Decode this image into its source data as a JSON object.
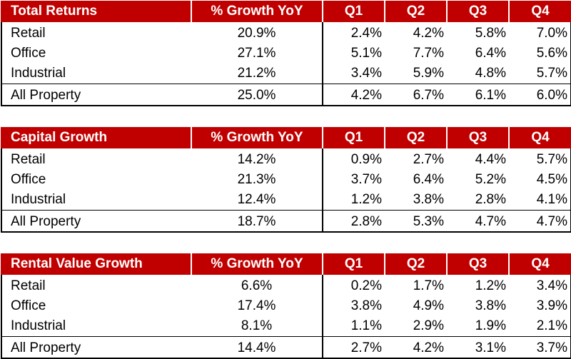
{
  "columns": {
    "yoy": "% Growth YoY",
    "q1": "Q1",
    "q2": "Q2",
    "q3": "Q3",
    "q4": "Q4"
  },
  "tables": [
    {
      "title": "Total Returns",
      "rows": [
        {
          "label": "Retail",
          "yoy": "20.9%",
          "q1": "2.4%",
          "q2": "4.2%",
          "q3": "5.8%",
          "q4": "7.0%"
        },
        {
          "label": "Office",
          "yoy": "27.1%",
          "q1": "5.1%",
          "q2": "7.7%",
          "q3": "6.4%",
          "q4": "5.6%"
        },
        {
          "label": "Industrial",
          "yoy": "21.2%",
          "q1": "3.4%",
          "q2": "5.9%",
          "q3": "4.8%",
          "q4": "5.7%"
        }
      ],
      "total": {
        "label": "All Property",
        "yoy": "25.0%",
        "q1": "4.2%",
        "q2": "6.7%",
        "q3": "6.1%",
        "q4": "6.0%"
      }
    },
    {
      "title": "Capital Growth",
      "rows": [
        {
          "label": "Retail",
          "yoy": "14.2%",
          "q1": "0.9%",
          "q2": "2.7%",
          "q3": "4.4%",
          "q4": "5.7%"
        },
        {
          "label": "Office",
          "yoy": "21.3%",
          "q1": "3.7%",
          "q2": "6.4%",
          "q3": "5.2%",
          "q4": "4.5%"
        },
        {
          "label": "Industrial",
          "yoy": "12.4%",
          "q1": "1.2%",
          "q2": "3.8%",
          "q3": "2.8%",
          "q4": "4.1%"
        }
      ],
      "total": {
        "label": "All Property",
        "yoy": "18.7%",
        "q1": "2.8%",
        "q2": "5.3%",
        "q3": "4.7%",
        "q4": "4.7%"
      }
    },
    {
      "title": "Rental Value Growth",
      "rows": [
        {
          "label": "Retail",
          "yoy": "6.6%",
          "q1": "0.2%",
          "q2": "1.7%",
          "q3": "1.2%",
          "q4": "3.4%"
        },
        {
          "label": "Office",
          "yoy": "17.4%",
          "q1": "3.8%",
          "q2": "4.9%",
          "q3": "3.8%",
          "q4": "3.9%"
        },
        {
          "label": "Industrial",
          "yoy": "8.1%",
          "q1": "1.1%",
          "q2": "2.9%",
          "q3": "1.9%",
          "q4": "2.1%"
        }
      ],
      "total": {
        "label": "All Property",
        "yoy": "14.4%",
        "q1": "2.7%",
        "q2": "4.2%",
        "q3": "3.1%",
        "q4": "3.7%"
      }
    }
  ]
}
